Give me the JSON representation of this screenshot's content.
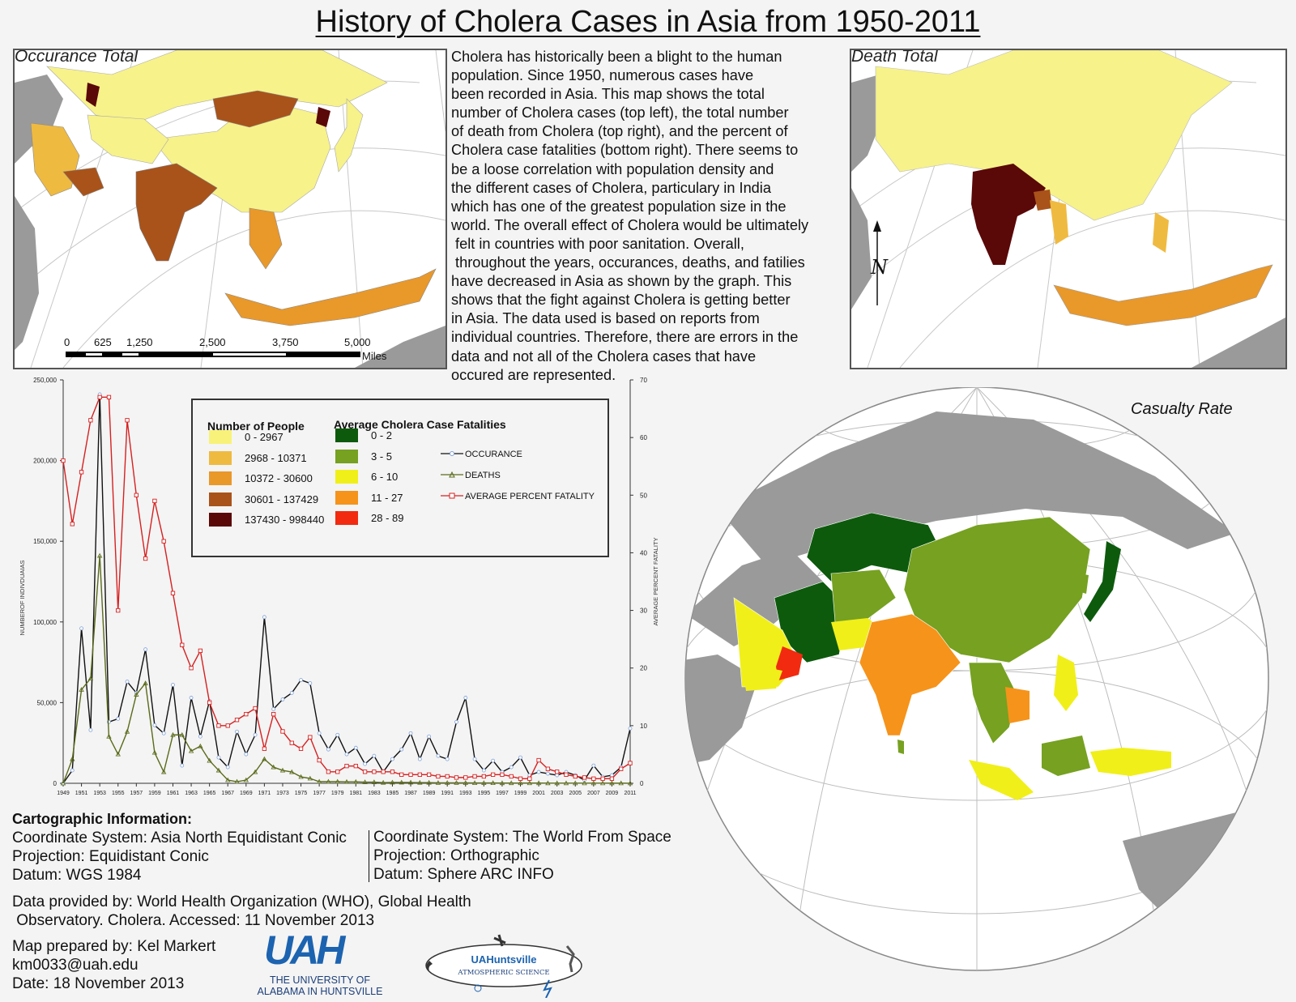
{
  "title": "History of Cholera Cases in Asia from 1950-2011",
  "maps": {
    "occurrence": {
      "label": "Occurance Total",
      "scale_ticks": [
        "0",
        "625",
        "1,250",
        "2,500",
        "3,750",
        "5,000"
      ],
      "scale_unit": "Miles"
    },
    "deaths": {
      "label": "Death Total",
      "north_label": "N"
    },
    "casualty": {
      "label": "Casualty Rate"
    }
  },
  "colors": {
    "people": [
      "#f8f27a",
      "#efba40",
      "#e9982a",
      "#a9531a",
      "#5a0808"
    ],
    "fatality": [
      "#0d5a0d",
      "#76a121",
      "#f0ef1a",
      "#f6931a",
      "#f22a10"
    ],
    "land_gray": "#9a9a9a",
    "occurrence_line": "#111111",
    "occurrence_marker": "#7fa0d6",
    "deaths_line": "#5a6a1a",
    "fatality_line": "#d62020"
  },
  "description": [
    "Cholera has historically been a blight to the human",
    "population. Since 1950, numerous cases have",
    "been recorded in Asia. This map shows the total",
    "number of Cholera cases (top left), the total number",
    "of death from Cholera (top right), and the percent of",
    "Cholera case fatalities (bottom right). There seems to",
    "be a loose correlation with population density and",
    "the different cases of Cholera, particulary in India",
    "which has one of the greatest population size in the",
    "world. The overall effect of Cholera would be ultimately",
    " felt in countries with poor sanitation. Overall,",
    " throughout the years, occurances, deaths, and fatilies",
    "have decreased in Asia as shown by the graph. This",
    "shows that the fight against Cholera is getting better",
    "in Asia. The data used is based on reports from",
    "individual countries. Therefore, there are errors in the",
    "data and not all of the Cholera cases that have",
    "occured are represented."
  ],
  "legend": {
    "people_title": "Number of People",
    "people_classes": [
      "0 - 2967",
      "2968 - 10371",
      "10372 - 30600",
      "30601 - 137429",
      "137430 - 998440"
    ],
    "fatality_title": "Average Cholera Case Fatalities",
    "fatality_classes": [
      "0 - 2",
      "3 - 5",
      "6 - 10",
      "11 - 27",
      "28 - 89"
    ],
    "series_labels": [
      "OCCURANCE",
      "DEATHS",
      "AVERAGE PERCENT FATALITY"
    ]
  },
  "chart_data": {
    "type": "line",
    "ylabel": "NUMBEROF INDIVDUAIAS",
    "y2label": "AVERAGE PERCENT FATALITY",
    "ylim": [
      0,
      250000
    ],
    "y2lim": [
      0,
      70
    ],
    "y_ticks": [
      "0",
      "50,000",
      "100,000",
      "150,000",
      "200,000",
      "250,000"
    ],
    "y2_ticks": [
      "0",
      "10",
      "20",
      "30",
      "40",
      "50",
      "60",
      "70"
    ],
    "x": [
      1949,
      1950,
      1951,
      1952,
      1953,
      1954,
      1955,
      1956,
      1957,
      1958,
      1959,
      1960,
      1961,
      1962,
      1963,
      1964,
      1965,
      1966,
      1967,
      1968,
      1969,
      1970,
      1971,
      1972,
      1973,
      1974,
      1975,
      1976,
      1977,
      1978,
      1979,
      1980,
      1981,
      1982,
      1983,
      1984,
      1985,
      1986,
      1987,
      1988,
      1989,
      1990,
      1991,
      1992,
      1993,
      1994,
      1995,
      1996,
      1997,
      1998,
      1999,
      2000,
      2001,
      2002,
      2003,
      2004,
      2005,
      2006,
      2007,
      2008,
      2009,
      2010,
      2011
    ],
    "x_tick_labels": [
      "1949",
      "1951",
      "1953",
      "1955",
      "1957",
      "1959",
      "1961",
      "1963",
      "1965",
      "1967",
      "1969",
      "1971",
      "1973",
      "1975",
      "1977",
      "1979",
      "1981",
      "1983",
      "1985",
      "1987",
      "1989",
      "1991",
      "1993",
      "1995",
      "1997",
      "1999",
      "2001",
      "2003",
      "2005",
      "2007",
      "2009",
      "2011"
    ],
    "series": [
      {
        "name": "OCCURANCE",
        "axis": "left",
        "values": [
          0,
          8000,
          96000,
          33000,
          241000,
          38000,
          40000,
          63000,
          56000,
          83000,
          36000,
          31000,
          61000,
          11000,
          53000,
          29000,
          51000,
          16000,
          10000,
          32000,
          18000,
          30000,
          103000,
          46000,
          52000,
          56000,
          64000,
          62000,
          31000,
          21000,
          30000,
          18000,
          22000,
          12000,
          17000,
          7000,
          15000,
          21000,
          31000,
          15000,
          29000,
          17000,
          15000,
          38000,
          53000,
          15000,
          8000,
          14000,
          7000,
          10000,
          16000,
          5000,
          7000,
          6000,
          5000,
          7000,
          5000,
          2000,
          11000,
          4000,
          5000,
          10000,
          34000
        ]
      },
      {
        "name": "DEATHS",
        "axis": "left",
        "values": [
          0,
          15000,
          58000,
          65000,
          141000,
          29000,
          18000,
          32000,
          55000,
          62000,
          19000,
          7000,
          30000,
          30000,
          20000,
          23000,
          14000,
          8000,
          2000,
          1000,
          2000,
          7000,
          15000,
          10000,
          8000,
          7000,
          4000,
          3000,
          1000,
          1000,
          1000,
          900,
          900,
          700,
          700,
          400,
          500,
          500,
          500,
          400,
          400,
          300,
          300,
          300,
          250,
          200,
          200,
          200,
          150,
          150,
          150,
          120,
          120,
          100,
          100,
          100,
          80,
          80,
          80,
          70,
          60,
          60,
          50
        ]
      },
      {
        "name": "AVERAGE PERCENT FATALITY",
        "axis": "right",
        "values": [
          56,
          45,
          54,
          63,
          67,
          67,
          30,
          63,
          50,
          39,
          49,
          42,
          33,
          24,
          20,
          23,
          14,
          10,
          10,
          11,
          12,
          13,
          6,
          12,
          9,
          7,
          6,
          8,
          4,
          2,
          2,
          3,
          3,
          2,
          2,
          2,
          2,
          1.5,
          1.5,
          1.5,
          1.5,
          1.2,
          1.2,
          1,
          1,
          1.2,
          1.2,
          1.5,
          1.5,
          1.2,
          0.8,
          0.8,
          4,
          2.5,
          2,
          1.5,
          1.2,
          1,
          0.8,
          0.8,
          0.8,
          2.5,
          3.5
        ]
      }
    ]
  },
  "cartographic": {
    "heading": "Cartographic Information:",
    "left": [
      "Coordinate System: Asia North Equidistant Conic",
      "Projection: Equidistant Conic",
      "Datum: WGS 1984"
    ],
    "right": [
      "Coordinate System: The World From Space",
      "Projection: Orthographic",
      "Datum: Sphere ARC INFO"
    ]
  },
  "data_source": [
    "Data provided by: World Health Organization (WHO), Global Health",
    " Observatory. Cholera. Accessed: 11 November 2013"
  ],
  "credits": [
    "Map prepared by: Kel Markert",
    "km0033@uah.edu",
    "Date: 18 November 2013"
  ],
  "logos": {
    "uah": {
      "mark": "UAH",
      "line1": "THE UNIVERSITY OF",
      "line2": "ALABAMA IN HUNTSVILLE",
      "color": "#1c63b0"
    },
    "atmos": {
      "line1": "UAHuntsville",
      "line2": "ATMOSPHERIC SCIENCE"
    }
  }
}
